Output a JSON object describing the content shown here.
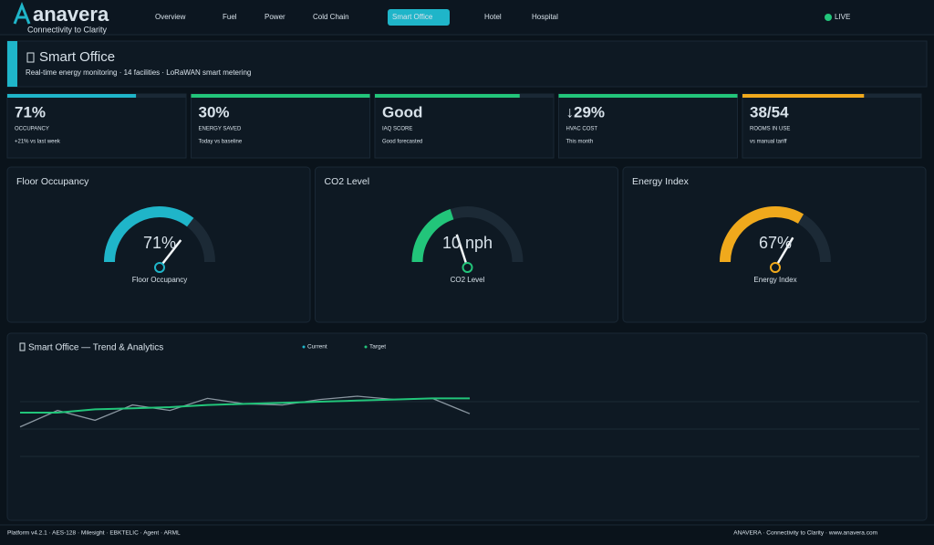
{
  "header": {
    "logo": "anavera",
    "tagline": "Connectivity to Clarity",
    "nav": [
      "Overview",
      "Fuel",
      "Power",
      "Cold Chain",
      "Smart Office",
      "Hotel",
      "Hospital"
    ],
    "active_nav": 4,
    "status": "LIVE"
  },
  "page": {
    "title": "Smart Office",
    "subtitle": "Real-time energy monitoring · 14 facilities · LoRaWAN smart metering"
  },
  "kpis": [
    {
      "value": "71%",
      "label": "OCCUPANCY",
      "note": "+21% vs last week",
      "color": "#1fb5c9",
      "progress": 72
    },
    {
      "value": "30%",
      "label": "ENERGY SAVED",
      "note": "Today vs baseline",
      "color": "#22c57a",
      "progress": 100
    },
    {
      "value": "Good",
      "label": "IAQ SCORE",
      "note": "Good forecasted",
      "color": "#22c57a",
      "progress": 81
    },
    {
      "value": "↓29%",
      "label": "HVAC COST",
      "note": "This month",
      "color": "#22c57a",
      "progress": 100
    },
    {
      "value": "38/54",
      "label": "ROOMS IN USE",
      "note": "vs manual tariff",
      "color": "#f0a91c",
      "progress": 68
    }
  ],
  "gauges": [
    {
      "title": "Floor Occupancy",
      "value": 71,
      "max": 100,
      "value_label": "71%",
      "caption": "Floor Occupancy",
      "color": "#1fb5c9"
    },
    {
      "title": "CO2 Level",
      "value": 10,
      "max": 25,
      "value_label": "10 nph",
      "caption": "CO2 Level",
      "color": "#22c57a"
    },
    {
      "title": "Energy Index",
      "value": 67,
      "max": 100,
      "value_label": "67%",
      "caption": "Energy Index",
      "color": "#f0a91c"
    }
  ],
  "trend": {
    "title": "Smart Office — Trend & Analytics",
    "chart_data": {
      "type": "line",
      "x": [
        0,
        1,
        2,
        3,
        4,
        5,
        6,
        7,
        8,
        9,
        10,
        11,
        12
      ],
      "xlim": [
        0,
        24
      ],
      "ylim": [
        0,
        100
      ],
      "yticks": [
        25,
        50,
        75
      ],
      "grid": true,
      "series": [
        {
          "name": "Current",
          "color": "#8a96a0",
          "values": [
            52,
            67,
            58,
            72,
            67,
            78,
            73,
            72,
            77,
            80,
            77,
            78,
            64
          ]
        },
        {
          "name": "Target",
          "color": "#22c57a",
          "values": [
            65,
            65,
            68,
            69,
            70,
            72,
            73,
            74,
            75,
            76,
            77,
            78,
            78
          ]
        }
      ]
    }
  },
  "footer": {
    "left": "Platform v4.2.1 · AES-128 · Milesight · EBKTELIC · Agent · ARML",
    "right": "ANAVERA · Connectivity to Clarity · www.anavera.com"
  }
}
